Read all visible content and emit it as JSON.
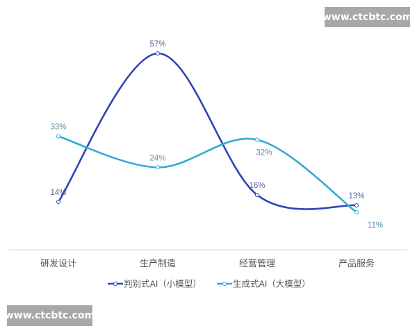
{
  "chart_data": {
    "type": "line",
    "title": "",
    "xlabel": "",
    "ylabel": "",
    "categories": [
      "研发设计",
      "生产制造",
      "经营管理",
      "产品服务"
    ],
    "ylim": [
      0,
      60
    ],
    "grid": false,
    "legend_position": "bottom",
    "series": [
      {
        "name": "判别式AI（小模型）",
        "values": [
          14,
          57,
          16,
          13
        ],
        "labels": [
          "14%",
          "57%",
          "16%",
          "13%"
        ],
        "color": "#2e43b5",
        "label_color": "#5b609c"
      },
      {
        "name": "生成式AI（大模型）",
        "values": [
          33,
          24,
          32,
          11
        ],
        "labels": [
          "33%",
          "24%",
          "32%",
          "11%"
        ],
        "color": "#33a9d6",
        "label_color": "#5d8fae"
      }
    ]
  },
  "watermarks": [
    "www.ctcbtc.com",
    "www.ctcbtc.com"
  ]
}
